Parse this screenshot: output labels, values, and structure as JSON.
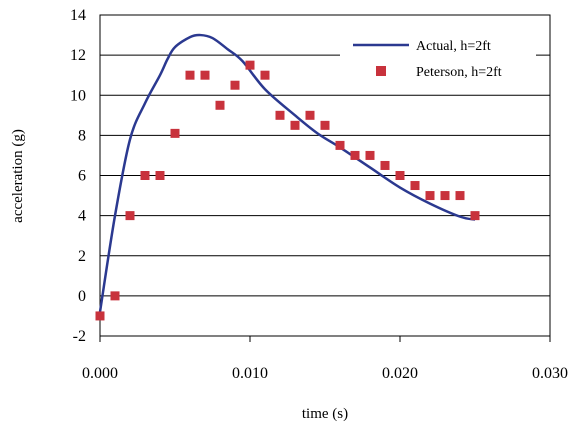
{
  "chart_data": {
    "type": "scatter",
    "xlabel": "time (s)",
    "ylabel": "acceleration (g)",
    "xlim": [
      0.0,
      0.03
    ],
    "ylim": [
      -2,
      14
    ],
    "x_ticks": [
      0.0,
      0.01,
      0.02,
      0.03
    ],
    "x_tick_labels": [
      "0.000",
      "0.010",
      "0.020",
      "0.030"
    ],
    "y_ticks": [
      -2,
      0,
      2,
      4,
      6,
      8,
      10,
      12,
      14
    ],
    "y_tick_labels": [
      "-2",
      "0",
      "2",
      "4",
      "6",
      "8",
      "10",
      "12",
      "14"
    ],
    "grid": "horizontal",
    "legend_position": "top-right",
    "series": [
      {
        "name": "Actual, h=2ft",
        "type": "line",
        "color": "#2b3990",
        "points": [
          [
            0.0,
            -0.8
          ],
          [
            0.001,
            4.0
          ],
          [
            0.002,
            7.8
          ],
          [
            0.003,
            9.6
          ],
          [
            0.004,
            11.0
          ],
          [
            0.0045,
            11.8
          ],
          [
            0.005,
            12.4
          ],
          [
            0.006,
            12.9
          ],
          [
            0.0067,
            13.0
          ],
          [
            0.0075,
            12.85
          ],
          [
            0.0085,
            12.3
          ],
          [
            0.0095,
            11.7
          ],
          [
            0.011,
            10.3
          ],
          [
            0.013,
            9.0
          ],
          [
            0.0145,
            8.1
          ],
          [
            0.016,
            7.4
          ],
          [
            0.018,
            6.4
          ],
          [
            0.02,
            5.4
          ],
          [
            0.022,
            4.6
          ],
          [
            0.024,
            3.95
          ],
          [
            0.025,
            3.8
          ]
        ]
      },
      {
        "name": "Peterson, h=2ft",
        "type": "scatter",
        "color": "#c8323c",
        "points": [
          [
            0.0,
            -1.0
          ],
          [
            0.001,
            0.0
          ],
          [
            0.002,
            4.0
          ],
          [
            0.003,
            6.0
          ],
          [
            0.004,
            6.0
          ],
          [
            0.005,
            8.1
          ],
          [
            0.006,
            11.0
          ],
          [
            0.007,
            11.0
          ],
          [
            0.008,
            9.5
          ],
          [
            0.009,
            10.5
          ],
          [
            0.01,
            11.5
          ],
          [
            0.011,
            11.0
          ],
          [
            0.012,
            9.0
          ],
          [
            0.013,
            8.5
          ],
          [
            0.014,
            9.0
          ],
          [
            0.015,
            8.5
          ],
          [
            0.016,
            7.5
          ],
          [
            0.017,
            7.0
          ],
          [
            0.018,
            7.0
          ],
          [
            0.019,
            6.5
          ],
          [
            0.02,
            6.0
          ],
          [
            0.021,
            5.5
          ],
          [
            0.022,
            5.0
          ],
          [
            0.023,
            5.0
          ],
          [
            0.024,
            5.0
          ],
          [
            0.025,
            4.0
          ]
        ]
      }
    ]
  }
}
